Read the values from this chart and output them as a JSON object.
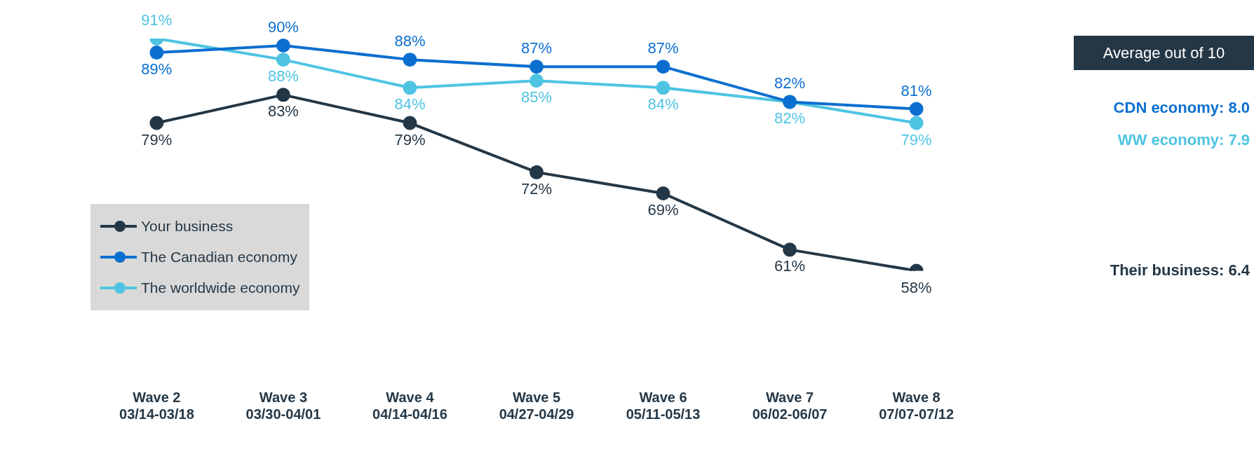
{
  "chart_data": {
    "type": "line",
    "categories": [
      "Wave 2\n03/14-03/18",
      "Wave 3\n03/30-04/01",
      "Wave 4\n04/14-04/16",
      "Wave 5\n04/27-04/29",
      "Wave 6\n05/11-05/13",
      "Wave 7\n06/02-06/07",
      "Wave 8\n07/07-07/12"
    ],
    "series": [
      {
        "name": "Your business",
        "color": "#243746",
        "values": [
          79,
          83,
          79,
          72,
          69,
          61,
          58
        ],
        "value_labels": [
          "79%",
          "83%",
          "79%",
          "72%",
          "69%",
          "61%",
          "58%"
        ]
      },
      {
        "name": "The Canadian economy",
        "color": "#0b6fd0",
        "values": [
          89,
          90,
          88,
          87,
          87,
          82,
          81
        ],
        "value_labels": [
          "89%",
          "90%",
          "88%",
          "87%",
          "87%",
          "82%",
          "81%"
        ]
      },
      {
        "name": "The worldwide economy",
        "color": "#4ec4e2",
        "values": [
          91,
          88,
          84,
          85,
          84,
          82,
          79
        ],
        "value_labels": [
          "91%",
          "88%",
          "84%",
          "85%",
          "84%",
          "82%",
          "79%"
        ]
      }
    ],
    "marker": "circle",
    "line_style": "solid",
    "legend": "left",
    "grid": false,
    "annotations": [
      "Average out of 10",
      "CDN economy: 8.0",
      "WW economy: 7.9",
      "Their business: 6.4"
    ]
  }
}
